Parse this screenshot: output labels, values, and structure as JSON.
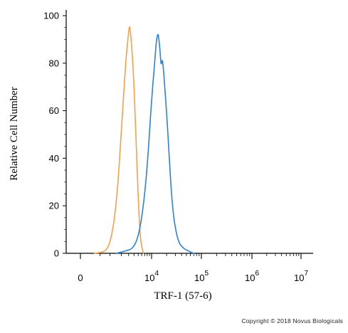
{
  "chart_data": {
    "type": "line",
    "xlabel": "TRF-1 (57-6)",
    "ylabel": "Relative Cell Number",
    "xscale": "biexponential",
    "ylim": [
      0,
      100
    ],
    "y_ticks": [
      0,
      20,
      40,
      60,
      80,
      100
    ],
    "x_ticks": [
      {
        "value": 0,
        "base": "0",
        "exp": ""
      },
      {
        "value": 10000,
        "base": "10",
        "exp": "4"
      },
      {
        "value": 100000,
        "base": "10",
        "exp": "5"
      },
      {
        "value": 1000000,
        "base": "10",
        "exp": "6"
      },
      {
        "value": 10000000,
        "base": "10",
        "exp": "7"
      }
    ],
    "grid": false,
    "series": [
      {
        "color": "#f5a14a",
        "x": [
          300,
          700,
          1000,
          1300,
          1600,
          1900,
          2200,
          2500,
          2800,
          3100,
          3300,
          3600,
          4000,
          4500,
          5000,
          5500,
          6000,
          6600
        ],
        "y": [
          0,
          1,
          5,
          14,
          28,
          46,
          63,
          78,
          88,
          95,
          93,
          85,
          70,
          46,
          24,
          9,
          3,
          0
        ]
      },
      {
        "color": "#2b82d9",
        "x": [
          1500,
          2500,
          3500,
          4500,
          5500,
          6500,
          7500,
          8500,
          9500,
          10500,
          11500,
          12500,
          13500,
          14500,
          15500,
          16500,
          17500,
          19000,
          21000,
          23000,
          25000,
          28000,
          32000,
          37000,
          45000,
          55000,
          70000
        ],
        "y": [
          0,
          1,
          2,
          5,
          11,
          20,
          31,
          44,
          58,
          70,
          80,
          89,
          92,
          87,
          80,
          81,
          76,
          66,
          52,
          38,
          26,
          15,
          8,
          4,
          2,
          1,
          0
        ]
      }
    ]
  },
  "copyright": "Copyright © 2018 Novus Biologicals"
}
